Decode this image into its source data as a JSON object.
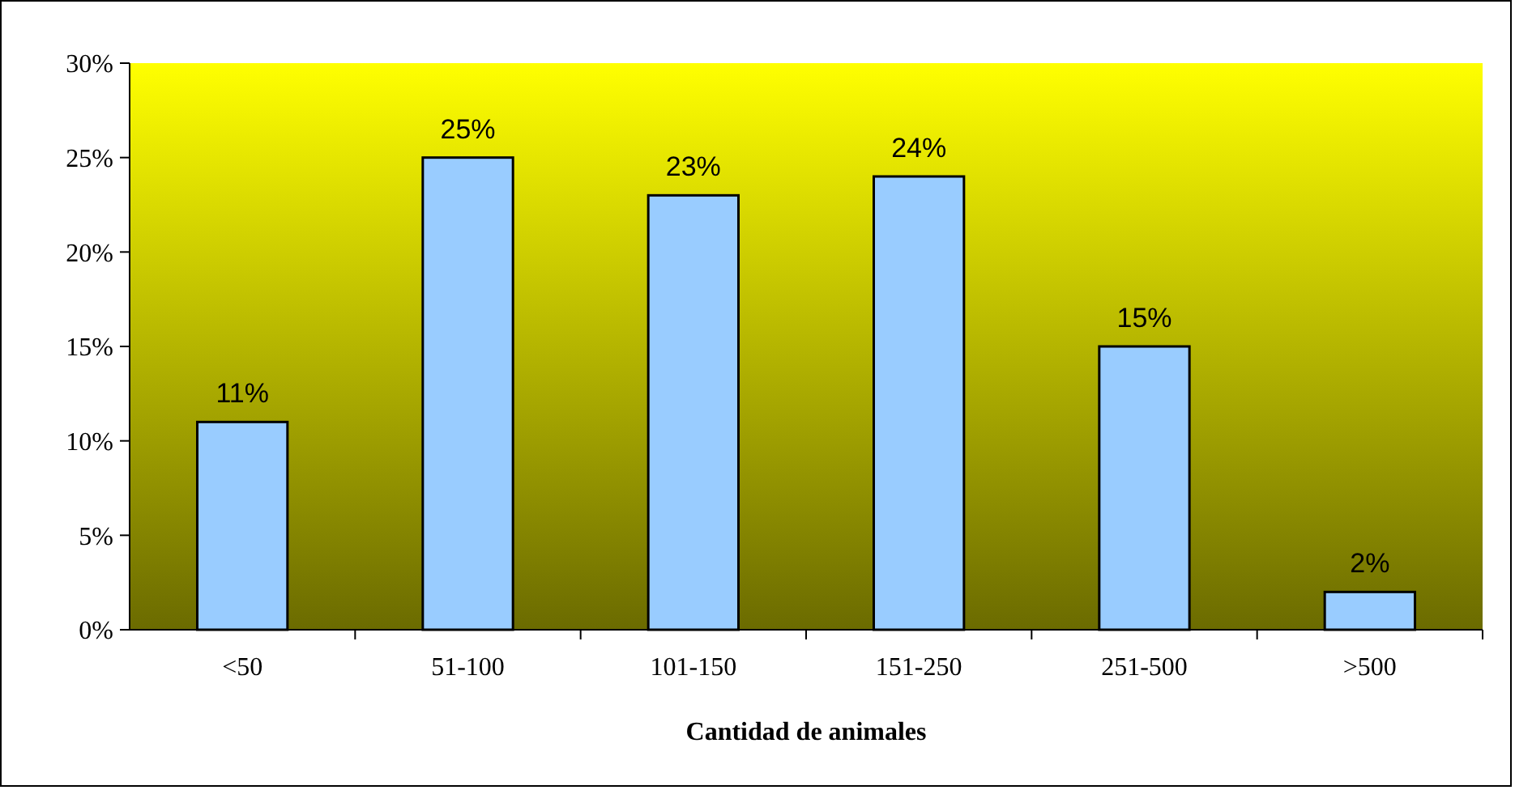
{
  "chart_data": {
    "type": "bar",
    "xlabel": "Cantidad de animales",
    "categories": [
      "<50",
      "51-100",
      "101-150",
      "151-250",
      "251-500",
      ">500"
    ],
    "values": [
      11,
      25,
      23,
      24,
      15,
      2
    ],
    "value_labels": [
      "11%",
      "25%",
      "23%",
      "24%",
      "15%",
      "2%"
    ],
    "color": "#99ccff",
    "ylim": [
      0,
      30
    ],
    "yticks": [
      {
        "value": 0,
        "label": "0%"
      },
      {
        "value": 5,
        "label": "5%"
      },
      {
        "value": 10,
        "label": "10%"
      },
      {
        "value": 15,
        "label": "15%"
      },
      {
        "value": 20,
        "label": "20%"
      },
      {
        "value": 25,
        "label": "25%"
      },
      {
        "value": 30,
        "label": "30%"
      }
    ],
    "grid": false
  }
}
